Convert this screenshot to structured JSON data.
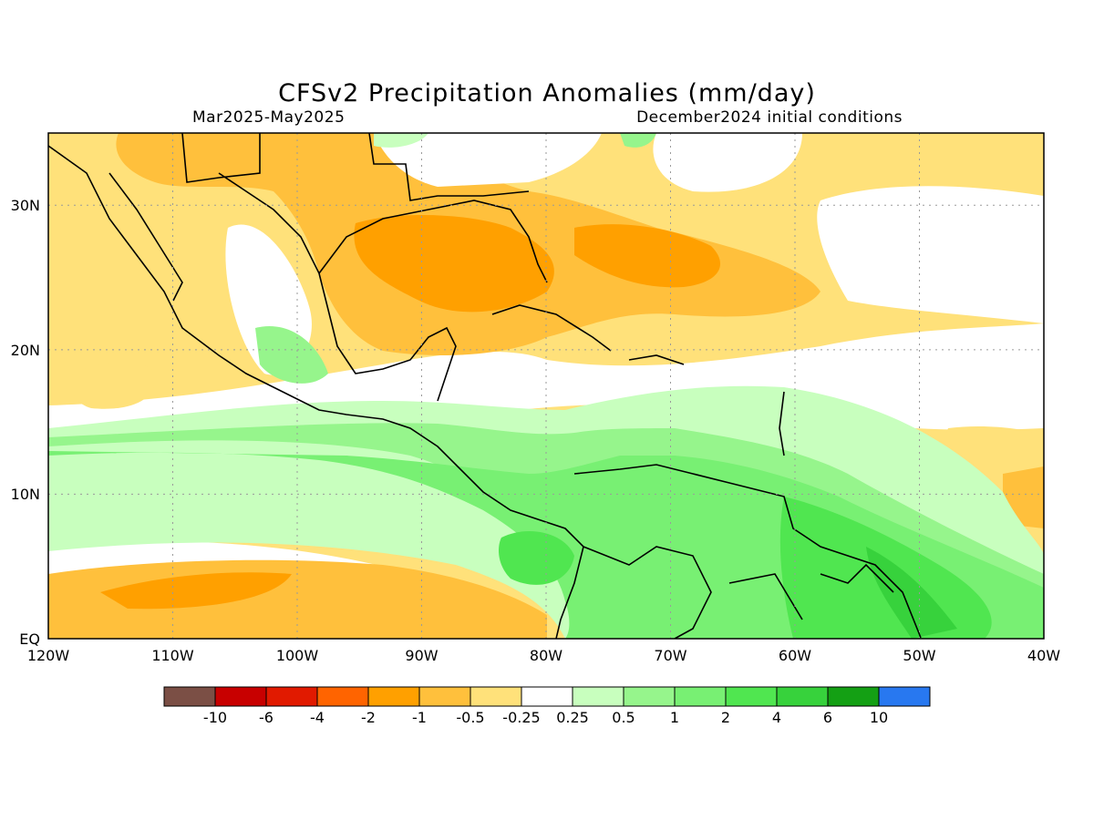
{
  "header": {
    "title": "CFSv2 Precipitation Anomalies (mm/day)",
    "period": "Mar2025-May2025",
    "init": "December2024 initial conditions"
  },
  "map": {
    "lon_range": [
      -120,
      -40
    ],
    "lat_range": [
      0,
      35
    ],
    "x_ticks": [
      "120W",
      "110W",
      "100W",
      "90W",
      "80W",
      "70W",
      "60W",
      "50W",
      "40W"
    ],
    "y_ticks": [
      "EQ",
      "10N",
      "20N",
      "30N"
    ],
    "grid": true
  },
  "colorbar": {
    "colors": [
      "#7b4f45",
      "#c80000",
      "#e11a00",
      "#ff6400",
      "#ffa000",
      "#ffc03c",
      "#ffe17a",
      "#ffffff",
      "#c8ffbe",
      "#96f58c",
      "#78f073",
      "#50e650",
      "#37d23c",
      "#14a014",
      "#2878f0"
    ],
    "labels": [
      "-10",
      "-6",
      "-4",
      "-2",
      "-1",
      "-0.5",
      "-0.25",
      "0.25",
      "0.5",
      "1",
      "2",
      "4",
      "6",
      "10"
    ]
  }
}
